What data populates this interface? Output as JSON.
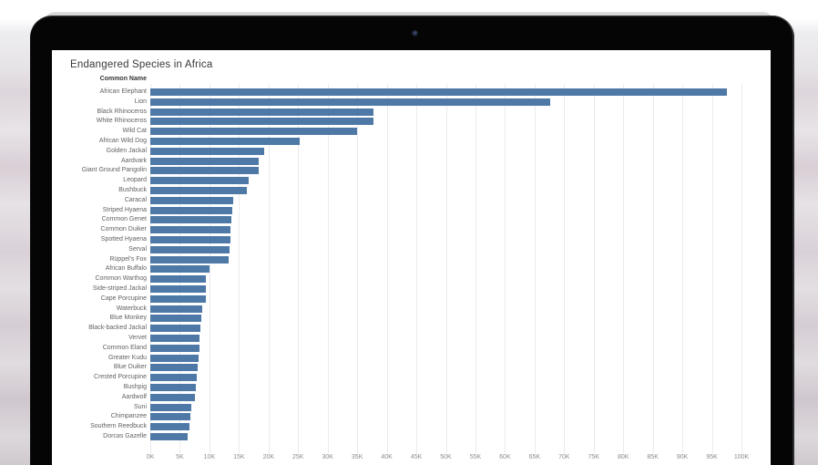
{
  "device": {
    "type": "laptop-mockup"
  },
  "chart_data": {
    "type": "bar",
    "orientation": "horizontal",
    "title": "Endangered Species in Africa",
    "row_header": "Common Name",
    "categories": [
      "African Elephant",
      "Lion",
      "Black Rhinoceros",
      "White Rhinoceros",
      "Wild Cat",
      "African Wild Dog",
      "Golden Jackal",
      "Aardvark",
      "Giant Ground Pangolin",
      "Leopard",
      "Bushbuck",
      "Caracal",
      "Striped Hyaena",
      "Common Genet",
      "Common Duiker",
      "Spotted Hyaena",
      "Serval",
      "Rüppel's Fox",
      "African Buffalo",
      "Common Warthog",
      "Side-striped Jackal",
      "Cape Porcupine",
      "Waterbuck",
      "Blue Monkey",
      "Black-backed Jackal",
      "Vervet",
      "Common Eland",
      "Greater Kudu",
      "Blue Duiker",
      "Crested Porcupine",
      "Bushpig",
      "Aardwolf",
      "Suni",
      "Chimpanzee",
      "Southern Reedbuck",
      "Dorcas Gazelle"
    ],
    "values_k": [
      97.5,
      67.7,
      37.8,
      37.7,
      35.0,
      25.3,
      19.3,
      18.3,
      18.3,
      16.6,
      16.3,
      14.0,
      13.9,
      13.7,
      13.6,
      13.6,
      13.4,
      13.2,
      10.0,
      9.4,
      9.4,
      9.4,
      8.7,
      8.6,
      8.4,
      8.3,
      8.3,
      8.2,
      8.0,
      7.8,
      7.7,
      7.5,
      6.9,
      6.7,
      6.6,
      6.3
    ],
    "x_ticks_k": [
      0,
      5,
      10,
      15,
      20,
      25,
      30,
      35,
      40,
      45,
      50,
      55,
      60,
      65,
      70,
      75,
      80,
      85,
      90,
      95,
      100
    ],
    "x_tick_labels": [
      "0K",
      "5K",
      "10K",
      "15K",
      "20K",
      "25K",
      "30K",
      "35K",
      "40K",
      "45K",
      "50K",
      "55K",
      "60K",
      "65K",
      "70K",
      "75K",
      "80K",
      "85K",
      "90K",
      "95K",
      "100K"
    ],
    "xlim_k": [
      0,
      100
    ],
    "bar_color": "#4e79a7",
    "gridline_color": "#ebebee",
    "grid": true,
    "legend": "none"
  }
}
